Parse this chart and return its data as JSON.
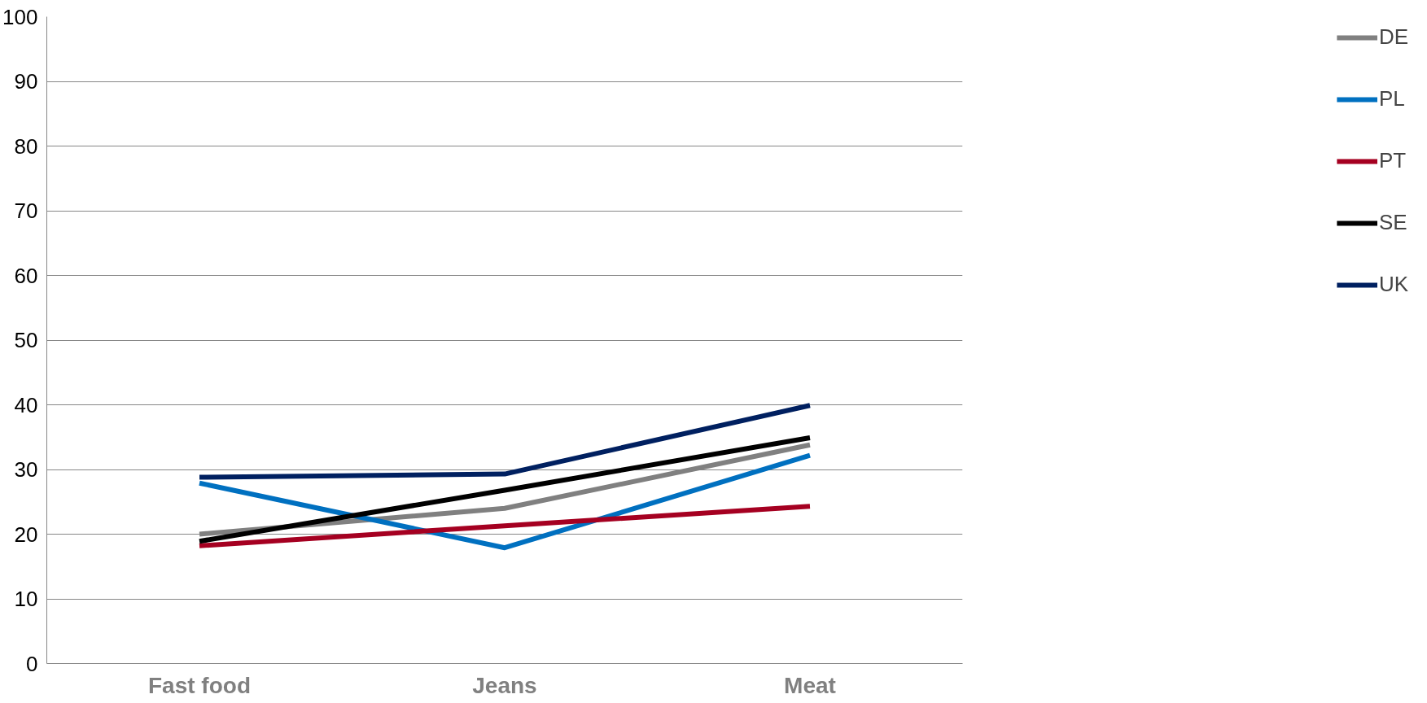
{
  "chart_data": {
    "type": "line",
    "categories": [
      "Fast food",
      "Jeans",
      "Meat"
    ],
    "series": [
      {
        "name": "DE",
        "color": "#808080",
        "values": [
          20,
          24,
          33.8
        ]
      },
      {
        "name": "PL",
        "color": "#0070c0",
        "values": [
          27.9,
          17.9,
          32.2
        ]
      },
      {
        "name": "PT",
        "color": "#a50021",
        "values": [
          18.2,
          21.3,
          24.3
        ]
      },
      {
        "name": "SE",
        "color": "#000000",
        "values": [
          18.9,
          26.8,
          34.9
        ]
      },
      {
        "name": "UK",
        "color": "#002060",
        "values": [
          28.8,
          29.3,
          39.9
        ]
      }
    ],
    "ylim": [
      0,
      100
    ],
    "yticks": [
      0,
      10,
      20,
      30,
      40,
      50,
      60,
      70,
      80,
      90,
      100
    ],
    "grid": "y",
    "legend": "right",
    "marker": "none",
    "line_style": "solid"
  }
}
